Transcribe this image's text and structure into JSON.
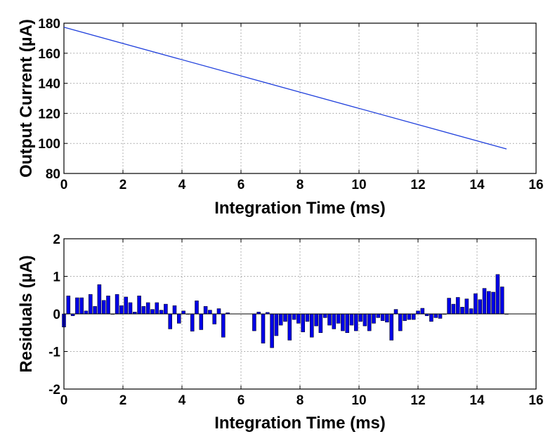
{
  "chart_data": [
    {
      "type": "line",
      "title": "",
      "xlabel": "Integration Time (ms)",
      "ylabel": "Output Current (µA)",
      "xlim": [
        0,
        16
      ],
      "ylim": [
        80,
        180
      ],
      "xticks": [
        "0",
        "2",
        "4",
        "6",
        "8",
        "10",
        "12",
        "14",
        "16"
      ],
      "yticks": [
        "80",
        "100",
        "120",
        "140",
        "160",
        "180"
      ],
      "grid": true,
      "color": "#1f3fdc",
      "x": [
        0,
        15
      ],
      "y": [
        177.3,
        96.3
      ]
    },
    {
      "type": "bar",
      "title": "",
      "xlabel": "Integration Time (ms)",
      "ylabel": "Residuals (µA)",
      "xlim": [
        0,
        16
      ],
      "ylim": [
        -2,
        2
      ],
      "xticks": [
        "0",
        "2",
        "4",
        "6",
        "8",
        "10",
        "12",
        "14",
        "16"
      ],
      "yticks": [
        "-2",
        "-1",
        "0",
        "1",
        "2"
      ],
      "grid": true,
      "color": "#0000e6",
      "x": [
        0.0,
        0.15,
        0.3,
        0.45,
        0.6,
        0.75,
        0.9,
        1.05,
        1.2,
        1.35,
        1.5,
        1.65,
        1.8,
        1.95,
        2.1,
        2.25,
        2.4,
        2.55,
        2.7,
        2.85,
        3.0,
        3.15,
        3.3,
        3.45,
        3.6,
        3.75,
        3.9,
        4.05,
        4.2,
        4.35,
        4.5,
        4.65,
        4.8,
        4.95,
        5.1,
        5.25,
        5.4,
        5.55,
        6.45,
        6.6,
        6.75,
        6.9,
        7.05,
        7.2,
        7.35,
        7.5,
        7.65,
        7.8,
        7.95,
        8.1,
        8.25,
        8.4,
        8.55,
        8.7,
        8.85,
        9.0,
        9.15,
        9.3,
        9.45,
        9.6,
        9.75,
        9.9,
        10.05,
        10.2,
        10.35,
        10.5,
        10.65,
        10.8,
        10.95,
        11.1,
        11.25,
        11.4,
        11.55,
        11.7,
        11.85,
        12.0,
        12.15,
        12.3,
        12.45,
        12.6,
        12.75,
        12.9,
        13.05,
        13.2,
        13.35,
        13.5,
        13.65,
        13.8,
        13.95,
        14.1,
        14.25,
        14.4,
        14.55,
        14.7,
        14.85,
        15.0
      ],
      "values": [
        -0.35,
        0.48,
        -0.05,
        0.43,
        0.43,
        0.08,
        0.52,
        0.2,
        0.78,
        0.36,
        0.48,
        0.0,
        0.52,
        0.22,
        0.45,
        0.3,
        0.05,
        0.48,
        0.2,
        0.3,
        0.12,
        0.3,
        0.1,
        0.26,
        -0.4,
        0.22,
        -0.25,
        0.08,
        0.0,
        -0.46,
        0.35,
        -0.42,
        0.2,
        0.1,
        -0.27,
        0.14,
        -0.62,
        0.03,
        -0.45,
        0.05,
        -0.78,
        0.04,
        -0.9,
        -0.58,
        -0.3,
        -0.2,
        -0.7,
        -0.15,
        -0.25,
        -0.48,
        -0.2,
        -0.62,
        -0.32,
        -0.5,
        -0.1,
        -0.3,
        -0.4,
        -0.25,
        -0.45,
        -0.5,
        -0.3,
        -0.45,
        -0.2,
        -0.32,
        -0.45,
        -0.25,
        -0.1,
        -0.18,
        -0.22,
        -0.7,
        0.12,
        -0.45,
        -0.18,
        -0.15,
        -0.15,
        0.08,
        0.15,
        -0.05,
        -0.2,
        -0.1,
        -0.12,
        0.0,
        0.42,
        0.26,
        0.44,
        0.18,
        0.4,
        0.14,
        0.54,
        0.38,
        0.68,
        0.6,
        0.58,
        1.05,
        0.72,
        0.0
      ]
    }
  ]
}
